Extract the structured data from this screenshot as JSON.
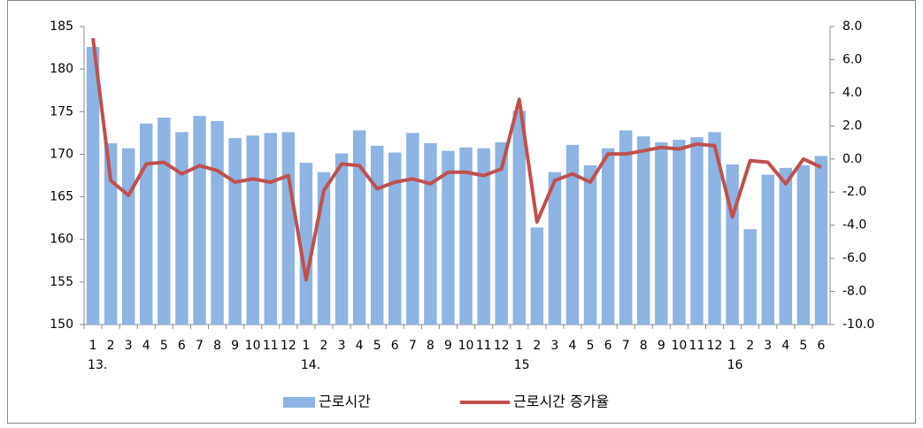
{
  "chart_data": {
    "type": "bar-line",
    "categories": [
      "1",
      "2",
      "3",
      "4",
      "5",
      "6",
      "7",
      "8",
      "9",
      "10",
      "11",
      "12",
      "1",
      "2",
      "3",
      "4",
      "5",
      "6",
      "7",
      "8",
      "9",
      "10",
      "11",
      "12",
      "1",
      "2",
      "3",
      "4",
      "5",
      "6",
      "7",
      "8",
      "9",
      "10",
      "11",
      "12",
      "1",
      "2",
      "3",
      "4",
      "5",
      "6"
    ],
    "x_groups": [
      "13.",
      null,
      null,
      null,
      null,
      null,
      null,
      null,
      null,
      null,
      null,
      null,
      "14.",
      null,
      null,
      null,
      null,
      null,
      null,
      null,
      null,
      null,
      null,
      null,
      "15",
      null,
      null,
      null,
      null,
      null,
      null,
      null,
      null,
      null,
      null,
      null,
      "16",
      null,
      null,
      null,
      null,
      null
    ],
    "series": [
      {
        "name": "근로시간",
        "kind": "bar",
        "color": "#8db4e2",
        "values": [
          182.6,
          171.3,
          170.7,
          173.6,
          174.3,
          172.6,
          174.5,
          173.9,
          171.9,
          172.2,
          172.5,
          172.6,
          169.0,
          167.9,
          170.1,
          172.8,
          171.0,
          170.2,
          172.5,
          171.3,
          170.4,
          170.8,
          170.7,
          171.4,
          175.1,
          161.4,
          167.9,
          171.1,
          168.7,
          170.7,
          172.8,
          172.1,
          171.4,
          171.7,
          172.0,
          172.6,
          168.8,
          161.2,
          167.6,
          168.4,
          168.7,
          169.8
        ]
      },
      {
        "name": "근로시간 증가율",
        "kind": "line",
        "axis": "y2",
        "color": "#c0504d",
        "values": [
          7.3,
          -1.3,
          -2.2,
          -0.3,
          -0.2,
          -0.9,
          -0.4,
          -0.7,
          -1.4,
          -1.2,
          -1.4,
          -1.0,
          -7.3,
          -1.9,
          -0.3,
          -0.4,
          -1.8,
          -1.4,
          -1.2,
          -1.5,
          -0.8,
          -0.8,
          -1.0,
          -0.6,
          3.6,
          -3.8,
          -1.3,
          -0.9,
          -1.4,
          0.3,
          0.3,
          0.5,
          0.7,
          0.6,
          0.9,
          0.8,
          -3.5,
          -0.1,
          -0.2,
          -1.5,
          0.0,
          -0.5
        ]
      }
    ],
    "ylim": [
      150,
      185
    ],
    "yticks": [
      150,
      155,
      160,
      165,
      170,
      175,
      180,
      185
    ],
    "y2lim": [
      -10,
      8
    ],
    "y2ticks": [
      {
        "value": -10,
        "label": "-10.0"
      },
      {
        "value": -8,
        "label": "-8.0"
      },
      {
        "value": -6,
        "label": "-6.0"
      },
      {
        "value": -4,
        "label": "-4.0"
      },
      {
        "value": -2,
        "label": "-2.0"
      },
      {
        "value": 0,
        "label": "0.0"
      },
      {
        "value": 2,
        "label": "2.0"
      },
      {
        "value": 4,
        "label": "4.0"
      },
      {
        "value": 6,
        "label": "6.0"
      },
      {
        "value": 8,
        "label": "8.0"
      }
    ],
    "legend": "bottom"
  }
}
